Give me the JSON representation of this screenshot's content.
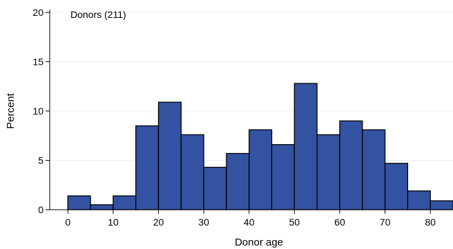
{
  "chart_data": {
    "type": "bar",
    "annotation": "Donors (211)",
    "xlabel": "Donor age",
    "ylabel": "Percent",
    "bin_width": 5,
    "x": [
      0,
      5,
      10,
      15,
      20,
      25,
      30,
      35,
      40,
      45,
      50,
      55,
      60,
      65,
      70,
      75,
      80
    ],
    "values": [
      1.4,
      0.5,
      1.4,
      8.5,
      10.9,
      7.6,
      4.3,
      5.7,
      8.1,
      6.6,
      12.8,
      7.6,
      9.0,
      8.1,
      4.7,
      1.9,
      0.9
    ],
    "xlim": [
      -4,
      85
    ],
    "ylim": [
      0,
      20
    ],
    "xticks": [
      0,
      10,
      20,
      30,
      40,
      50,
      60,
      70,
      80
    ],
    "yticks": [
      0,
      5,
      10,
      15,
      20
    ],
    "grid": true,
    "bar_color": "#3352a2",
    "grid_color": "#eaf0f5"
  }
}
